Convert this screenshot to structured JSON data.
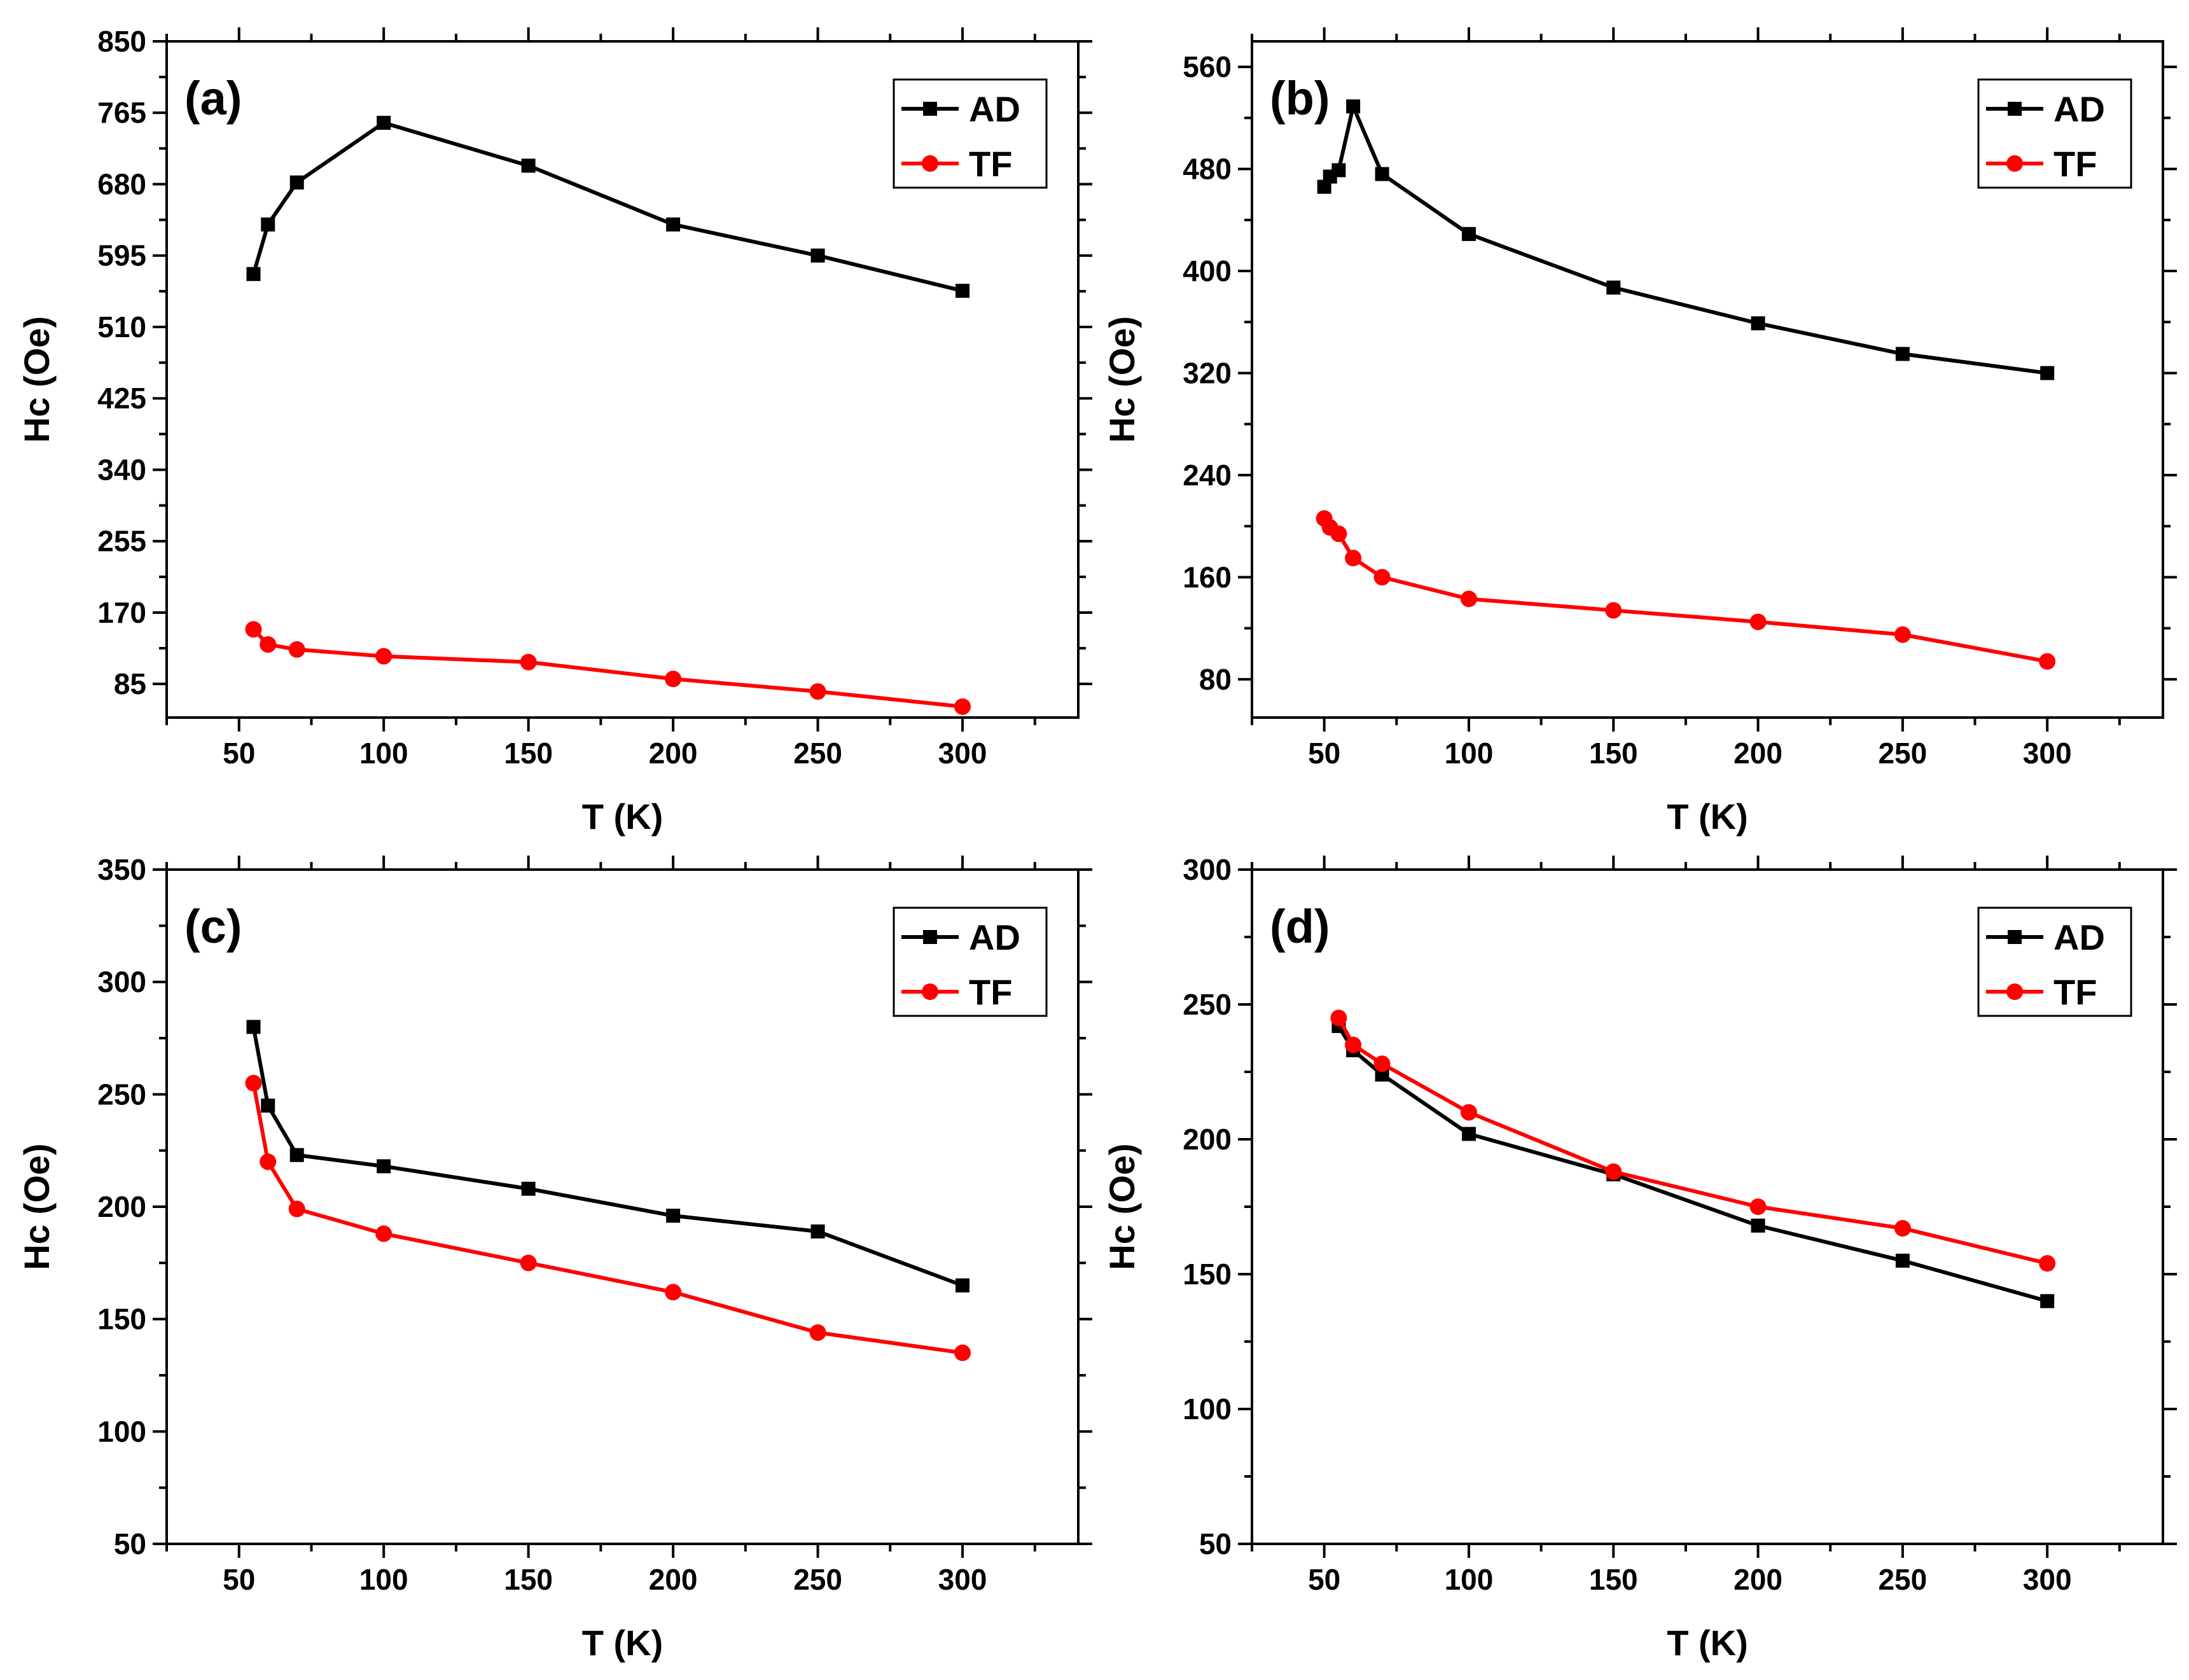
{
  "chart_data": [
    {
      "type": "line",
      "panel_label": "(a)",
      "xlabel": "T (K)",
      "ylabel": "Hc (Oe)",
      "xlim": [
        25,
        340
      ],
      "ylim": [
        45,
        850
      ],
      "xticks": [
        50,
        100,
        150,
        200,
        250,
        300
      ],
      "yticks": [
        85,
        170,
        255,
        340,
        425,
        510,
        595,
        680,
        765,
        850
      ],
      "legend_position": "top-right",
      "series": [
        {
          "name": "AD",
          "color": "#000000",
          "marker": "square",
          "x": [
            55,
            60,
            70,
            100,
            150,
            200,
            250,
            300
          ],
          "y": [
            573,
            632,
            682,
            753,
            702,
            632,
            595,
            553
          ]
        },
        {
          "name": "TF",
          "color": "#ff0000",
          "marker": "circle",
          "x": [
            55,
            60,
            70,
            100,
            150,
            200,
            250,
            300
          ],
          "y": [
            150,
            132,
            126,
            118,
            111,
            91,
            76,
            58
          ]
        }
      ]
    },
    {
      "type": "line",
      "panel_label": "(b)",
      "xlabel": "T (K)",
      "ylabel": "Hc (Oe)",
      "xlim": [
        25,
        340
      ],
      "ylim": [
        50,
        580
      ],
      "xticks": [
        50,
        100,
        150,
        200,
        250,
        300
      ],
      "yticks": [
        80,
        160,
        240,
        320,
        400,
        480,
        560
      ],
      "legend_position": "top-right",
      "series": [
        {
          "name": "AD",
          "color": "#000000",
          "marker": "square",
          "x": [
            50,
            52,
            55,
            60,
            70,
            100,
            150,
            200,
            250,
            300
          ],
          "y": [
            466,
            474,
            479,
            529,
            476,
            429,
            387,
            359,
            335,
            320
          ]
        },
        {
          "name": "TF",
          "color": "#ff0000",
          "marker": "circle",
          "x": [
            50,
            52,
            55,
            60,
            70,
            100,
            150,
            200,
            250,
            300
          ],
          "y": [
            206,
            199,
            194,
            175,
            160,
            143,
            134,
            125,
            115,
            94
          ]
        }
      ]
    },
    {
      "type": "line",
      "panel_label": "(c)",
      "xlabel": "T (K)",
      "ylabel": "Hc (Oe)",
      "xlim": [
        25,
        340
      ],
      "ylim": [
        50,
        350
      ],
      "xticks": [
        50,
        100,
        150,
        200,
        250,
        300
      ],
      "yticks": [
        50,
        100,
        150,
        200,
        250,
        300,
        350
      ],
      "legend_position": "top-right",
      "series": [
        {
          "name": "AD",
          "color": "#000000",
          "marker": "square",
          "x": [
            55,
            60,
            70,
            100,
            150,
            200,
            250,
            300
          ],
          "y": [
            280,
            245,
            223,
            218,
            208,
            196,
            189,
            165
          ]
        },
        {
          "name": "TF",
          "color": "#ff0000",
          "marker": "circle",
          "x": [
            55,
            60,
            70,
            100,
            150,
            200,
            250,
            300
          ],
          "y": [
            255,
            220,
            199,
            188,
            175,
            162,
            144,
            135
          ]
        }
      ]
    },
    {
      "type": "line",
      "panel_label": "(d)",
      "xlabel": "T (K)",
      "ylabel": "Hc (Oe)",
      "xlim": [
        25,
        340
      ],
      "ylim": [
        50,
        300
      ],
      "xticks": [
        50,
        100,
        150,
        200,
        250,
        300
      ],
      "yticks": [
        50,
        100,
        150,
        200,
        250,
        300
      ],
      "legend_position": "top-right",
      "series": [
        {
          "name": "AD",
          "color": "#000000",
          "marker": "square",
          "x": [
            55,
            60,
            70,
            100,
            150,
            200,
            250,
            300
          ],
          "y": [
            242,
            233,
            224,
            202,
            187,
            168,
            155,
            140
          ]
        },
        {
          "name": "TF",
          "color": "#ff0000",
          "marker": "circle",
          "x": [
            55,
            60,
            70,
            100,
            150,
            200,
            250,
            300
          ],
          "y": [
            245,
            235,
            228,
            210,
            188,
            175,
            167,
            154
          ]
        }
      ]
    }
  ]
}
